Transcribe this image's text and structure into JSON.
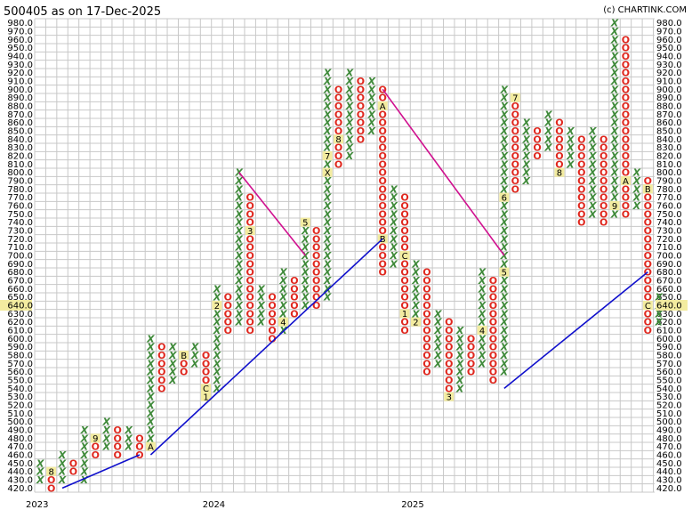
{
  "header": {
    "title": "500405 as on 17-Dec-2025",
    "credit": "(c) CHARTINK.COM"
  },
  "colors": {
    "x_mark": "#3f8a3a",
    "o_mark": "#e0281f",
    "grid": "#c8c8c8",
    "month_marker_bg": "#f3eca0",
    "trend_up": "#1010cc",
    "trend_down": "#d0108f",
    "last_price_bg": "#f3eca0"
  },
  "chart_data": {
    "type": "point-and-figure",
    "box_size": 10,
    "ylim": [
      420,
      980
    ],
    "last_price": "640.0",
    "x_tick_labels": [
      {
        "label": "2023",
        "col": 0
      },
      {
        "label": "2024",
        "col": 16
      },
      {
        "label": "2025",
        "col": 34
      }
    ],
    "columns": [
      {
        "type": "X",
        "low": 430,
        "high": 450
      },
      {
        "type": "O",
        "low": 420,
        "high": 440,
        "marks": {
          "440": "8"
        }
      },
      {
        "type": "X",
        "low": 430,
        "high": 460
      },
      {
        "type": "O",
        "low": 440,
        "high": 450
      },
      {
        "type": "X",
        "low": 430,
        "high": 490
      },
      {
        "type": "O",
        "low": 460,
        "high": 480,
        "marks": {
          "480": "9"
        }
      },
      {
        "type": "X",
        "low": 470,
        "high": 500
      },
      {
        "type": "O",
        "low": 460,
        "high": 490
      },
      {
        "type": "X",
        "low": 470,
        "high": 490
      },
      {
        "type": "O",
        "low": 460,
        "high": 480
      },
      {
        "type": "X",
        "low": 470,
        "high": 600,
        "marks": {
          "470": "A"
        }
      },
      {
        "type": "O",
        "low": 540,
        "high": 590
      },
      {
        "type": "X",
        "low": 550,
        "high": 590
      },
      {
        "type": "O",
        "low": 560,
        "high": 580,
        "marks": {
          "580": "B"
        }
      },
      {
        "type": "X",
        "low": 570,
        "high": 590
      },
      {
        "type": "O",
        "low": 530,
        "high": 580,
        "marks": {
          "540": "C",
          "530": "1"
        }
      },
      {
        "type": "X",
        "low": 540,
        "high": 660,
        "marks": {
          "640": "2"
        }
      },
      {
        "type": "O",
        "low": 610,
        "high": 650
      },
      {
        "type": "X",
        "low": 620,
        "high": 800
      },
      {
        "type": "O",
        "low": 610,
        "high": 770,
        "marks": {
          "730": "3"
        }
      },
      {
        "type": "X",
        "low": 620,
        "high": 660
      },
      {
        "type": "O",
        "low": 600,
        "high": 650
      },
      {
        "type": "X",
        "low": 610,
        "high": 680,
        "marks": {
          "620": "4"
        }
      },
      {
        "type": "O",
        "low": 630,
        "high": 670
      },
      {
        "type": "X",
        "low": 640,
        "high": 740,
        "marks": {
          "740": "5"
        }
      },
      {
        "type": "O",
        "low": 640,
        "high": 730
      },
      {
        "type": "X",
        "low": 650,
        "high": 920,
        "marks": {
          "640": "6",
          "820": "7",
          "800": "X"
        }
      },
      {
        "type": "O",
        "low": 810,
        "high": 900,
        "marks": {
          "840": "8"
        }
      },
      {
        "type": "X",
        "low": 820,
        "high": 920
      },
      {
        "type": "O",
        "low": 840,
        "high": 910
      },
      {
        "type": "X",
        "low": 850,
        "high": 910
      },
      {
        "type": "O",
        "low": 680,
        "high": 900,
        "marks": {
          "880": "A",
          "720": "B"
        }
      },
      {
        "type": "X",
        "low": 690,
        "high": 780
      },
      {
        "type": "O",
        "low": 610,
        "high": 770,
        "marks": {
          "700": "C",
          "630": "1"
        }
      },
      {
        "type": "X",
        "low": 620,
        "high": 690,
        "marks": {
          "620": "2"
        }
      },
      {
        "type": "O",
        "low": 560,
        "high": 680
      },
      {
        "type": "X",
        "low": 570,
        "high": 630
      },
      {
        "type": "O",
        "low": 530,
        "high": 620,
        "marks": {
          "530": "3"
        }
      },
      {
        "type": "X",
        "low": 540,
        "high": 610
      },
      {
        "type": "O",
        "low": 560,
        "high": 600
      },
      {
        "type": "X",
        "low": 570,
        "high": 680,
        "marks": {
          "610": "4"
        }
      },
      {
        "type": "O",
        "low": 550,
        "high": 670
      },
      {
        "type": "X",
        "low": 560,
        "high": 900,
        "marks": {
          "680": "5",
          "770": "6"
        }
      },
      {
        "type": "O",
        "low": 780,
        "high": 890,
        "marks": {
          "890": "7"
        }
      },
      {
        "type": "X",
        "low": 790,
        "high": 860
      },
      {
        "type": "O",
        "low": 820,
        "high": 850
      },
      {
        "type": "X",
        "low": 830,
        "high": 870
      },
      {
        "type": "O",
        "low": 800,
        "high": 860,
        "marks": {
          "800": "8"
        }
      },
      {
        "type": "X",
        "low": 810,
        "high": 850
      },
      {
        "type": "O",
        "low": 740,
        "high": 840
      },
      {
        "type": "X",
        "low": 750,
        "high": 850
      },
      {
        "type": "O",
        "low": 740,
        "high": 840
      },
      {
        "type": "X",
        "low": 750,
        "high": 980,
        "marks": {
          "760": "9"
        }
      },
      {
        "type": "O",
        "low": 750,
        "high": 960,
        "marks": {
          "790": "A"
        }
      },
      {
        "type": "X",
        "low": 760,
        "high": 800
      },
      {
        "type": "O",
        "low": 610,
        "high": 790,
        "marks": {
          "780": "B",
          "640": "C"
        }
      },
      {
        "type": "X",
        "low": 620,
        "high": 650
      }
    ],
    "trend_lines": [
      {
        "color": "up",
        "from": {
          "col": 2,
          "price": 420
        },
        "to": {
          "col": 9,
          "price": 460
        }
      },
      {
        "color": "up",
        "from": {
          "col": 10,
          "price": 460
        },
        "to": {
          "col": 31,
          "price": 720
        }
      },
      {
        "color": "down",
        "from": {
          "col": 18,
          "price": 800
        },
        "to": {
          "col": 24,
          "price": 700
        }
      },
      {
        "color": "down",
        "from": {
          "col": 31,
          "price": 900
        },
        "to": {
          "col": 42,
          "price": 700
        }
      },
      {
        "color": "up",
        "from": {
          "col": 42,
          "price": 540
        },
        "to": {
          "col": 55,
          "price": 680
        }
      }
    ]
  }
}
